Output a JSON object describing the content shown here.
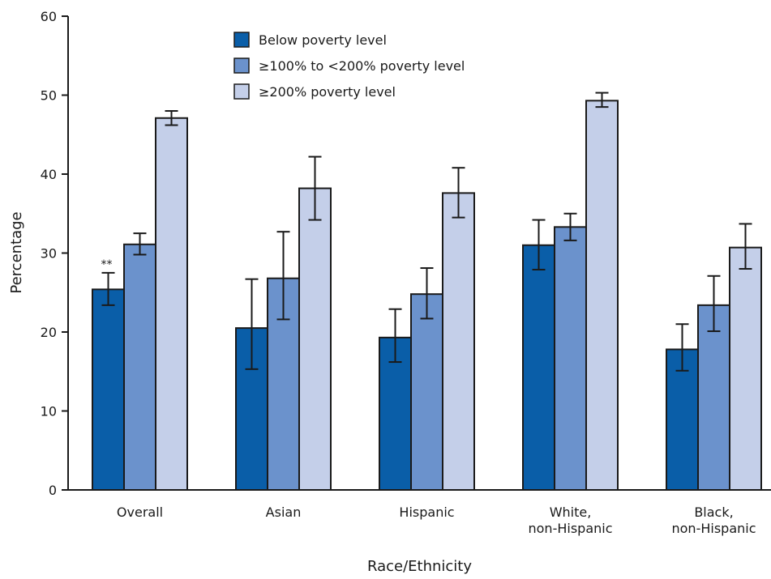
{
  "chart_data": {
    "type": "bar",
    "xlabel": "Race/Ethnicity",
    "ylabel": "Percentage",
    "ylim": [
      0,
      60
    ],
    "yticks": [
      0,
      10,
      20,
      30,
      40,
      50,
      60
    ],
    "grid": false,
    "legend_position": "top-center",
    "categories": [
      [
        "Overall"
      ],
      [
        "Asian"
      ],
      [
        "Hispanic"
      ],
      [
        "White,",
        "non-Hispanic"
      ],
      [
        "Black,",
        "non-Hispanic"
      ]
    ],
    "series": [
      {
        "name": "Below poverty level",
        "color": "#0a5ea8",
        "values": [
          25.4,
          20.5,
          19.3,
          31.0,
          17.8
        ],
        "err_low": [
          23.4,
          15.3,
          16.2,
          27.9,
          15.1
        ],
        "err_high": [
          27.5,
          26.7,
          22.9,
          34.2,
          21.0
        ]
      },
      {
        "name": "≥100% to <200% poverty level",
        "color": "#6b92cc",
        "values": [
          31.1,
          26.8,
          24.8,
          33.3,
          23.4
        ],
        "err_low": [
          29.8,
          21.6,
          21.7,
          31.6,
          20.1
        ],
        "err_high": [
          32.5,
          32.7,
          28.1,
          35.0,
          27.1
        ]
      },
      {
        "name": "≥200% poverty level",
        "color": "#c4cfe9",
        "values": [
          47.1,
          38.2,
          37.6,
          49.3,
          30.7
        ],
        "err_low": [
          46.2,
          34.2,
          34.5,
          48.5,
          28.0
        ],
        "err_high": [
          48.0,
          42.2,
          40.8,
          50.3,
          33.7
        ]
      }
    ],
    "annotations": [
      {
        "text": "**",
        "category_index": 0,
        "series_index": 0
      }
    ]
  }
}
